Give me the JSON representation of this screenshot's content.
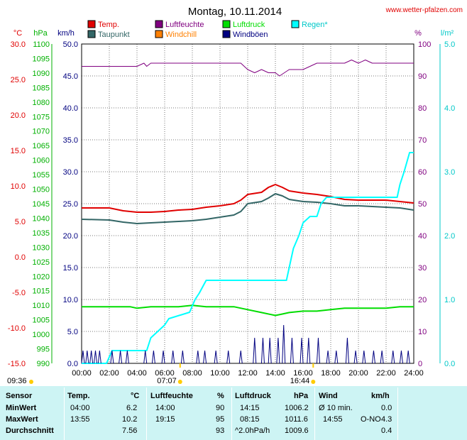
{
  "header": {
    "title": "Montag, 10.11.2014",
    "site": "www.wetter-pfalzen.com"
  },
  "legend": [
    {
      "name": "Temp.",
      "color": "#e00000"
    },
    {
      "name": "Taupunkt",
      "color": "#336666"
    },
    {
      "name": "Luftfeuchte",
      "color": "#800080"
    },
    {
      "name": "Windchill",
      "color": "#ff8000"
    },
    {
      "name": "Luftdruck",
      "color": "#00dd00"
    },
    {
      "name": "Windböen",
      "color": "#000080"
    },
    {
      "name": "Regen*",
      "color": "#00ffff"
    }
  ],
  "axes": {
    "temp_unit": "°C",
    "temp_ticks": [
      "30.0",
      "25.0",
      "20.0",
      "15.0",
      "10.0",
      "5.0",
      "0.0",
      "-5.0",
      "-10.0",
      "-15.0"
    ],
    "hpa_unit": "hPa",
    "hpa_ticks": [
      "1100",
      "1095",
      "1090",
      "1085",
      "1080",
      "1075",
      "1070",
      "1065",
      "1060",
      "1055",
      "1050",
      "1045",
      "1040",
      "1035",
      "1030",
      "1025",
      "1020",
      "1015",
      "1010",
      "1005",
      "1000",
      "995",
      "990"
    ],
    "wind_unit": "km/h",
    "wind_ticks": [
      "50.0",
      "45.0",
      "40.0",
      "35.0",
      "30.0",
      "25.0",
      "20.0",
      "15.0",
      "10.0",
      "5.0",
      "0.0"
    ],
    "hum_unit": "%",
    "hum_ticks": [
      "100",
      "90",
      "80",
      "70",
      "60",
      "50",
      "40",
      "30",
      "20",
      "10",
      "0"
    ],
    "rain_unit": "l/m²",
    "rain_ticks": [
      "5.0",
      "4.0",
      "3.0",
      "2.0",
      "1.0",
      "0.0"
    ],
    "time_ticks": [
      "00:00",
      "02:00",
      "04:00",
      "06:00",
      "08:00",
      "10:00",
      "12:00",
      "14:00",
      "16:00",
      "18:00",
      "20:00",
      "22:00",
      "24:00"
    ]
  },
  "sun": {
    "rise": "07:07",
    "set": "16:44",
    "daylength": "09:36"
  },
  "chart_data": {
    "type": "line",
    "title": "Montag, 10.11.2014",
    "x_unit": "hours",
    "xlim": [
      0,
      24
    ],
    "series": [
      {
        "name": "Temp.",
        "axis": "°C",
        "ylim": [
          -15,
          30
        ],
        "x": [
          0,
          2,
          3,
          4,
          5,
          6,
          7,
          8,
          9,
          10,
          11,
          11.5,
          12,
          13,
          13.5,
          14,
          14.5,
          15,
          16,
          17,
          18,
          19,
          20,
          21,
          22,
          23,
          24
        ],
        "values": [
          6.9,
          6.9,
          6.5,
          6.3,
          6.3,
          6.4,
          6.6,
          6.7,
          7.0,
          7.2,
          7.5,
          8.0,
          8.8,
          9.1,
          9.8,
          10.2,
          9.8,
          9.3,
          9.0,
          8.8,
          8.5,
          8.1,
          8.0,
          8.0,
          8.0,
          7.8,
          7.6
        ]
      },
      {
        "name": "Taupunkt",
        "axis": "°C",
        "ylim": [
          -15,
          30
        ],
        "x": [
          0,
          2,
          3,
          4,
          5,
          6,
          7,
          8,
          9,
          10,
          11,
          11.5,
          12,
          13,
          13.5,
          14,
          14.5,
          15,
          16,
          17,
          18,
          19,
          20,
          21,
          22,
          23,
          24
        ],
        "values": [
          5.3,
          5.2,
          4.9,
          4.7,
          4.8,
          4.9,
          5.0,
          5.1,
          5.3,
          5.6,
          5.9,
          6.4,
          7.5,
          7.8,
          8.3,
          8.9,
          8.6,
          8.1,
          7.8,
          7.7,
          7.5,
          7.2,
          7.2,
          7.1,
          7.0,
          6.9,
          6.6
        ]
      },
      {
        "name": "Luftfeuchte",
        "axis": "%",
        "ylim": [
          0,
          100
        ],
        "x": [
          0,
          2,
          4,
          4.5,
          4.7,
          5,
          6,
          8,
          10,
          11,
          11.5,
          12,
          12.5,
          13,
          13.5,
          14,
          14.3,
          15,
          16,
          17,
          18,
          19,
          19.5,
          20,
          20.5,
          21,
          22,
          24
        ],
        "values": [
          93,
          93,
          93,
          94,
          93,
          94,
          94,
          94,
          94,
          94,
          94,
          92,
          91,
          92,
          91,
          91,
          90,
          92,
          92,
          94,
          94,
          94,
          95,
          94,
          95,
          94,
          94,
          94
        ]
      },
      {
        "name": "Luftdruck",
        "axis": "hPa",
        "ylim": [
          990,
          1100
        ],
        "x": [
          0,
          2,
          3.5,
          4,
          5,
          6,
          7,
          8,
          9,
          10,
          11,
          12,
          13,
          14,
          14.5,
          15,
          16,
          17,
          18,
          19,
          20,
          21,
          22,
          23,
          24
        ],
        "values": [
          1009.5,
          1009.5,
          1009.5,
          1009,
          1009.5,
          1009.5,
          1009.5,
          1010,
          1009.5,
          1009.5,
          1009.5,
          1008.5,
          1007.5,
          1006.5,
          1007,
          1007.5,
          1008,
          1008,
          1008.5,
          1009,
          1009,
          1009,
          1009,
          1009.5,
          1009.5
        ]
      },
      {
        "name": "Regen*",
        "axis": "l/m²",
        "ylim": [
          0,
          5
        ],
        "x": [
          0,
          1.8,
          2.2,
          4.7,
          5.0,
          5.5,
          6.0,
          6.3,
          7.8,
          8.2,
          8.5,
          9.0,
          10,
          14.8,
          15.0,
          15.3,
          15.7,
          16.0,
          16.5,
          17.0,
          17.3,
          17.7,
          18,
          19,
          20,
          21,
          22,
          22.8,
          23.0,
          23.3,
          23.7,
          24
        ],
        "values": [
          0,
          0,
          0.2,
          0.2,
          0.4,
          0.5,
          0.6,
          0.7,
          0.8,
          1.0,
          1.1,
          1.3,
          1.3,
          1.3,
          1.5,
          1.8,
          2.0,
          2.2,
          2.3,
          2.3,
          2.5,
          2.6,
          2.6,
          2.6,
          2.6,
          2.6,
          2.6,
          2.6,
          2.8,
          3.0,
          3.3,
          3.3
        ]
      },
      {
        "name": "Windböen",
        "axis": "km/h",
        "ylim": [
          0,
          50
        ],
        "x": [
          0.1,
          0.4,
          0.7,
          1.0,
          1.3,
          2.2,
          2.8,
          3.3,
          4.6,
          5.2,
          5.9,
          6.6,
          7.3,
          8.4,
          8.9,
          9.7,
          10.6,
          11.5,
          12.5,
          13.1,
          13.6,
          14.2,
          14.6,
          15.2,
          15.9,
          16.4,
          17.1,
          17.8,
          18.4,
          19.2,
          19.8,
          20.4,
          21.1,
          21.7,
          22.5,
          23.1,
          23.6
        ],
        "values": [
          2,
          2,
          2,
          2,
          2,
          2,
          2,
          2,
          2,
          2,
          2,
          2,
          2,
          2,
          2,
          2,
          2,
          2,
          4,
          4,
          4,
          4,
          6,
          4,
          4,
          4,
          4,
          2,
          2,
          4,
          2,
          2,
          2,
          2,
          2,
          2,
          2
        ]
      }
    ],
    "legend_position": "top"
  },
  "stats": {
    "headers": {
      "sensor": "Sensor",
      "temp": "Temp.",
      "temp_unit": "°C",
      "hum": "Luftfeuchte",
      "hum_unit": "%",
      "press": "Luftdruck",
      "press_unit": "hPa",
      "wind": "Wind",
      "wind_unit": "km/h"
    },
    "rows": [
      {
        "label": "MinWert",
        "temp_time": "04:00",
        "temp_val": "6.2",
        "hum_time": "14:00",
        "hum_val": "90",
        "press_time": "14:15",
        "press_val": "1006.2",
        "wind_time": "Ø 10 min.",
        "wind_val": "0.0"
      },
      {
        "label": "MaxWert",
        "temp_time": "13:55",
        "temp_val": "10.2",
        "hum_time": "19:15",
        "hum_val": "95",
        "press_time": "08:15",
        "press_val": "1011.6",
        "wind_time": "14:55",
        "wind_dir": "O-NO",
        "wind_val": "4.3"
      },
      {
        "label": "Durchschnitt",
        "temp_time": "",
        "temp_val": "7.56",
        "hum_time": "",
        "hum_val": "93",
        "press_time": "^2.0hPa/h",
        "press_val": "1009.6",
        "wind_time": "",
        "wind_val": "0.4"
      }
    ]
  }
}
